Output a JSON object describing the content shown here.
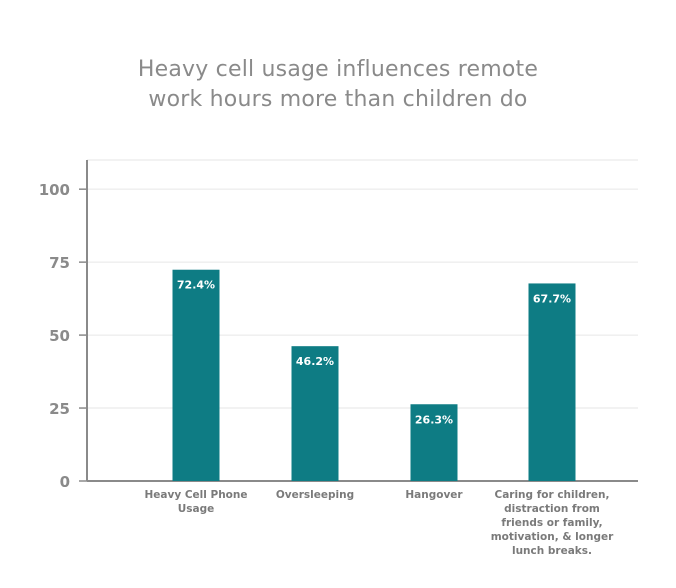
{
  "chart_data": {
    "type": "bar",
    "title_lines": [
      "Heavy cell usage influences remote",
      "work hours more than children do"
    ],
    "categories": [
      [
        "Heavy Cell Phone",
        "Usage"
      ],
      [
        "Oversleeping"
      ],
      [
        "Hangover"
      ],
      [
        "Caring for children,",
        "distraction from",
        "friends or family,",
        "motivation, & longer",
        "lunch breaks."
      ]
    ],
    "values": [
      72.4,
      46.2,
      26.3,
      67.7
    ],
    "data_labels": [
      "72.4%",
      "46.2%",
      "26.3%",
      "67.7%"
    ],
    "y_ticks": [
      0,
      25,
      50,
      75,
      100
    ],
    "ylim": [
      0,
      110
    ],
    "xlabel": "",
    "ylabel": "",
    "grid": true,
    "legend": "none",
    "colors": {
      "bar": "#0e7c84",
      "grid": "#e6e6e6",
      "axis": "#8a8a8a",
      "title": "#8a8a8a"
    }
  }
}
